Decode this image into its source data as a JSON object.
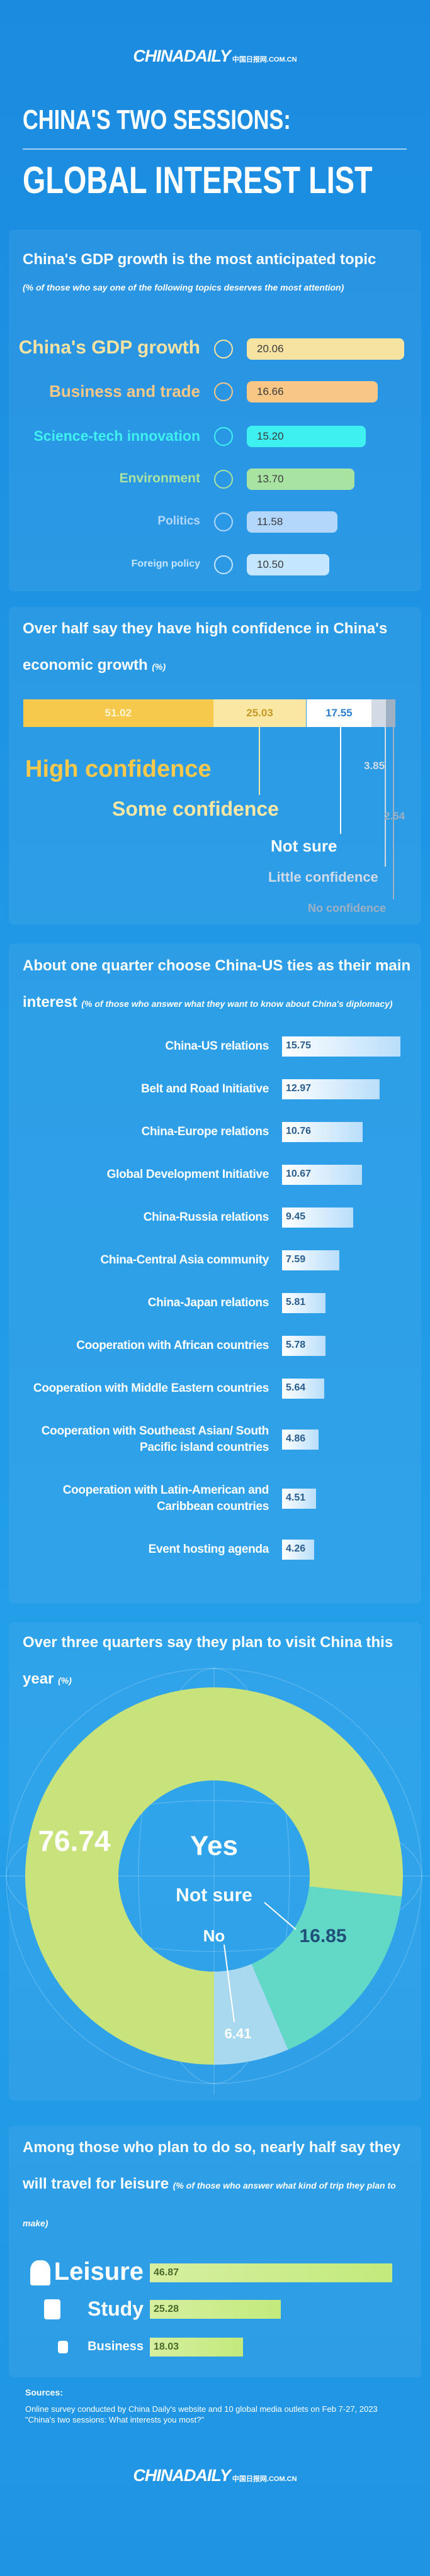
{
  "header": {
    "logo": "CHINADAILY",
    "logo_sub": "中国日报网.COM.CN",
    "title_line1": "CHINA'S TWO SESSIONS:",
    "title_line2": "GLOBAL INTEREST LIST"
  },
  "chart_data": [
    {
      "type": "bar",
      "title": "China's GDP growth is the most anticipated topic",
      "subtitle": "(% of those who say one of the following topics deserves the most attention)",
      "categories": [
        "China's GDP growth",
        "Business and trade",
        "Science-tech innovation",
        "Environment",
        "Politics",
        "Foreign policy"
      ],
      "values": [
        20.06,
        16.66,
        15.2,
        13.7,
        11.58,
        10.5
      ],
      "value_labels": [
        "20.06",
        "16.66",
        "15.20",
        "13.70",
        "11.58",
        "10.50"
      ],
      "colors": [
        "#f6e3a2",
        "#f8c685",
        "#3ff0f0",
        "#a9e3a1",
        "#b3d7fb",
        "#c4e6ff"
      ]
    },
    {
      "type": "stacked-bar",
      "title": "Over half say they have high confidence in China's economic growth",
      "subtitle": "(%)",
      "series": [
        {
          "name": "High confidence",
          "color": "#f6c94c",
          "values": [
            51.02
          ]
        },
        {
          "name": "Some confidence",
          "color": "#fbe7a4",
          "values": [
            25.03
          ]
        },
        {
          "name": "Not sure",
          "color": "#ffffff",
          "values": [
            17.55
          ]
        },
        {
          "name": "Little confidence",
          "color": "#d2dbe5",
          "values": [
            3.85
          ]
        },
        {
          "name": "No confidence",
          "color": "#9fb0c2",
          "values": [
            2.54
          ]
        }
      ]
    },
    {
      "type": "bar",
      "title": "About one quarter choose China-US ties as their main interest",
      "subtitle": "(% of those who answer what they want to know about China's diplomacy)",
      "categories": [
        "China-US relations",
        "Belt and Road Initiative",
        "China-Europe relations",
        "Global Development Initiative",
        "China-Russia relations",
        "China-Central Asia community",
        "China-Japan relations",
        "Cooperation with African countries",
        "Cooperation with Middle Eastern countries",
        "Cooperation with Southeast Asian/ South Pacific island countries",
        "Cooperation with Latin-American and Caribbean countries",
        "Event hosting agenda"
      ],
      "values": [
        15.75,
        12.97,
        10.76,
        10.67,
        9.45,
        7.59,
        5.81,
        5.78,
        5.64,
        4.86,
        4.51,
        4.26
      ],
      "color": "#ffffff"
    },
    {
      "type": "donut",
      "title": "Over three quarters say they plan to visit China this year",
      "subtitle": "(%)",
      "categories": [
        "Yes",
        "Not sure",
        "No"
      ],
      "values": [
        76.74,
        16.85,
        6.41
      ],
      "colors": [
        "#c8e27c",
        "#62d8c7",
        "#a9d9ef"
      ]
    },
    {
      "type": "bar",
      "title": "Among those who plan to do so, nearly half say they will travel for leisure",
      "subtitle": "(% of those who answer what kind of trip they plan to make)",
      "categories": [
        "Leisure",
        "Study",
        "Business"
      ],
      "values": [
        46.87,
        25.28,
        18.03
      ],
      "color": "#d6efa0"
    }
  ],
  "sources": {
    "label": "Sources:",
    "text": "Online survey conducted by China Daily's website and 10 global media outlets on Feb 7-27, 2023 \"China's two sessions: What interests you most?\""
  }
}
